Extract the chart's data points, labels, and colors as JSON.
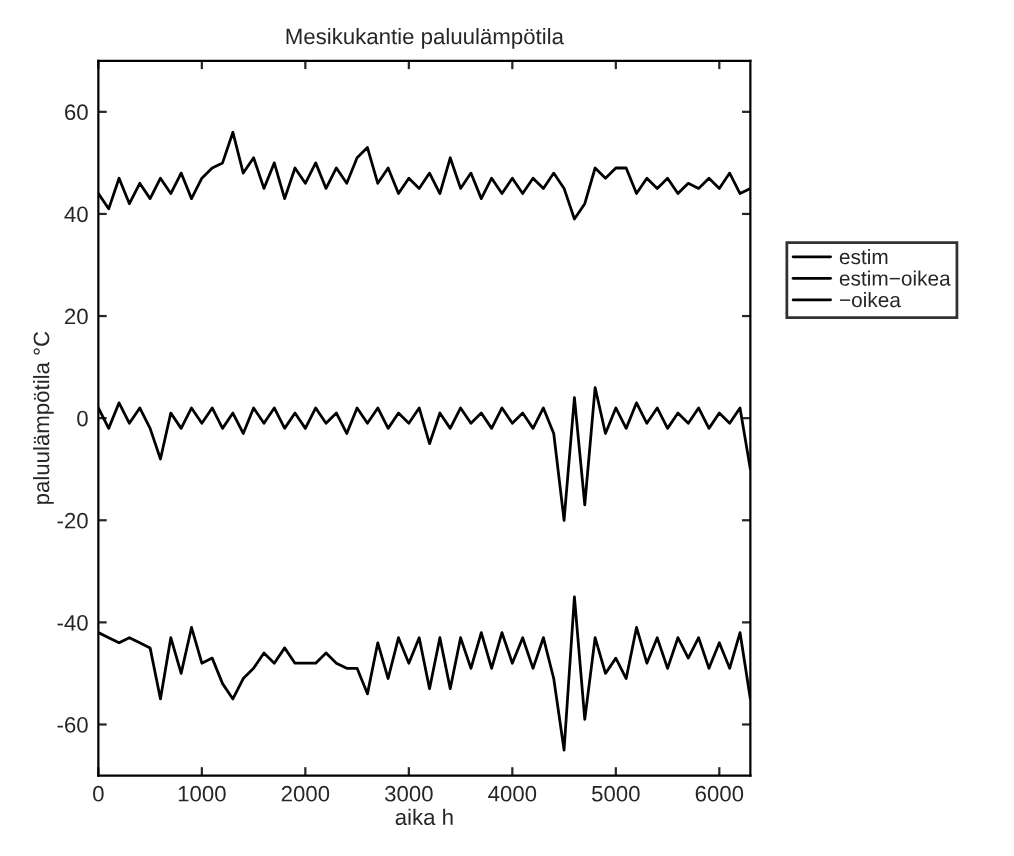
{
  "chart_data": {
    "type": "line",
    "title": "Mesikukantie paluulämpötila",
    "xlabel": "aika h",
    "ylabel": "paluulämpötila °C",
    "x": [
      0,
      100,
      200,
      300,
      400,
      500,
      600,
      700,
      800,
      900,
      1000,
      1100,
      1200,
      1300,
      1400,
      1500,
      1600,
      1700,
      1800,
      1900,
      2000,
      2100,
      2200,
      2300,
      2400,
      2500,
      2600,
      2700,
      2800,
      2900,
      3000,
      3100,
      3200,
      3300,
      3400,
      3500,
      3600,
      3700,
      3800,
      3900,
      4000,
      4100,
      4200,
      4300,
      4400,
      4500,
      4600,
      4700,
      4800,
      4900,
      5000,
      5100,
      5200,
      5300,
      5400,
      5500,
      5600,
      5700,
      5800,
      5900,
      6000,
      6100,
      6200,
      6300
    ],
    "series": [
      {
        "name": "estim",
        "color": "#000000",
        "values": [
          44,
          41,
          47,
          42,
          46,
          43,
          47,
          44,
          48,
          43,
          47,
          49,
          50,
          56,
          48,
          51,
          45,
          50,
          43,
          49,
          46,
          50,
          45,
          49,
          46,
          51,
          53,
          46,
          49,
          44,
          47,
          45,
          48,
          44,
          51,
          45,
          48,
          43,
          47,
          44,
          47,
          44,
          47,
          45,
          48,
          45,
          39,
          42,
          49,
          47,
          49,
          49,
          44,
          47,
          45,
          47,
          44,
          46,
          45,
          47,
          45,
          48,
          44,
          45
        ]
      },
      {
        "name": "estim−oikea",
        "color": "#000000",
        "values": [
          2,
          -2,
          3,
          -1,
          2,
          -2,
          -8,
          1,
          -2,
          2,
          -1,
          2,
          -2,
          1,
          -3,
          2,
          -1,
          2,
          -2,
          1,
          -2,
          2,
          -1,
          1,
          -3,
          2,
          -1,
          2,
          -2,
          1,
          -1,
          2,
          -5,
          1,
          -2,
          2,
          -1,
          1,
          -2,
          2,
          -1,
          1,
          -2,
          2,
          -3,
          -20,
          4,
          -17,
          6,
          -3,
          2,
          -2,
          3,
          -1,
          2,
          -2,
          1,
          -1,
          2,
          -2,
          1,
          -1,
          2,
          -10
        ]
      },
      {
        "name": "−oikea",
        "color": "#000000",
        "values": [
          -42,
          -43,
          -44,
          -43,
          -44,
          -45,
          -55,
          -43,
          -50,
          -41,
          -48,
          -47,
          -52,
          -55,
          -51,
          -49,
          -46,
          -48,
          -45,
          -48,
          -48,
          -48,
          -46,
          -48,
          -49,
          -49,
          -54,
          -44,
          -51,
          -43,
          -48,
          -43,
          -53,
          -43,
          -53,
          -43,
          -49,
          -42,
          -49,
          -42,
          -48,
          -43,
          -49,
          -43,
          -51,
          -65,
          -35,
          -59,
          -43,
          -50,
          -47,
          -51,
          -41,
          -48,
          -43,
          -49,
          -43,
          -47,
          -43,
          -49,
          -44,
          -49,
          -42,
          -55
        ]
      }
    ],
    "xlim": [
      0,
      6300
    ],
    "ylim": [
      -70,
      70
    ],
    "xticks": [
      0,
      1000,
      2000,
      3000,
      4000,
      5000,
      6000
    ],
    "yticks": [
      -60,
      -40,
      -20,
      0,
      20,
      40,
      60
    ],
    "grid": false,
    "legend": "right",
    "line_style": "solid",
    "marker": "none"
  }
}
